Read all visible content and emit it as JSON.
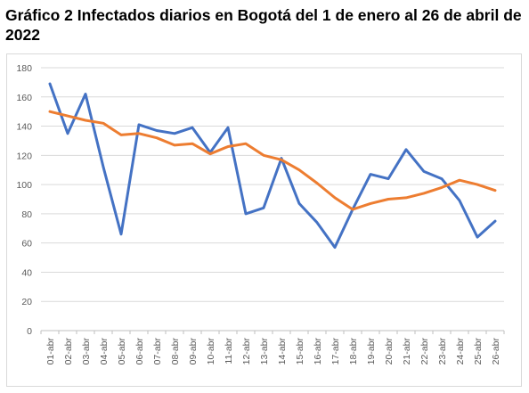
{
  "title": "Gráfico 2 Infectados diarios en Bogotá del 1 de enero al 26 de abril de 2022",
  "chart_data": {
    "type": "line",
    "title": "Gráfico 2 Infectados diarios en Bogotá del 1 de enero al 26 de abril de 2022",
    "xlabel": "",
    "ylabel": "",
    "ylim": [
      0,
      180
    ],
    "yticks": [
      0,
      20,
      40,
      60,
      80,
      100,
      120,
      140,
      160,
      180
    ],
    "grid": true,
    "legend": "none",
    "categories": [
      "01-abr",
      "02-abr",
      "03-abr",
      "04-abr",
      "05-abr",
      "06-abr",
      "07-abr",
      "08-abr",
      "09-abr",
      "10-abr",
      "11-abr",
      "12-abr",
      "13-abr",
      "14-abr",
      "15-abr",
      "16-abr",
      "17-abr",
      "18-abr",
      "19-abr",
      "20-abr",
      "21-abr",
      "22-abr",
      "23-abr",
      "24-abr",
      "25-abr",
      "26-abr"
    ],
    "series": [
      {
        "color": "#4472c4",
        "values": [
          169,
          135,
          162,
          112,
          66,
          141,
          137,
          135,
          139,
          122,
          139,
          80,
          84,
          118,
          87,
          74,
          57,
          83,
          107,
          104,
          124,
          109,
          104,
          89,
          64,
          75
        ]
      },
      {
        "color": "#ed7d31",
        "values": [
          150,
          147,
          144,
          142,
          134,
          135,
          132,
          127,
          128,
          121,
          126,
          128,
          120,
          117,
          110,
          101,
          91,
          83,
          87,
          90,
          91,
          94,
          98,
          103,
          100,
          96
        ]
      }
    ]
  }
}
